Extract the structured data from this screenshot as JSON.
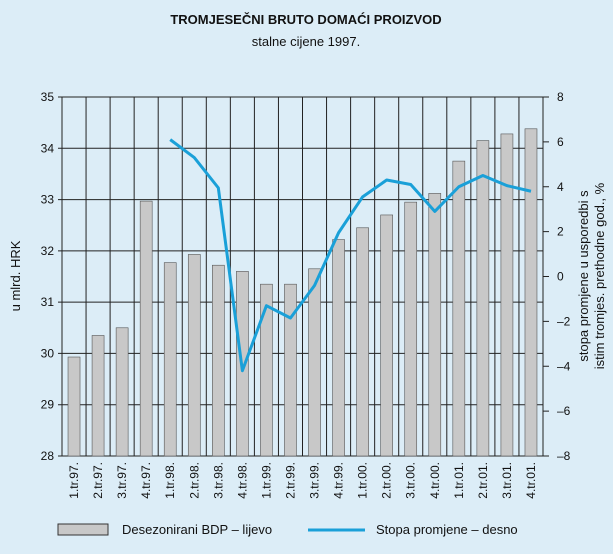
{
  "chart_data": {
    "type": "bar_line",
    "title": "TROMJESEČNI BRUTO DOMAĆI PROIZVOD",
    "subtitle": "stalne cijene 1997.",
    "ylabel": "u mlrd. HRK",
    "y2label": [
      "stopa promjene u usporedbi s",
      "istim tromjes. prethodne god., %"
    ],
    "categories": [
      "1.tr.97.",
      "2.tr.97.",
      "3.tr.97.",
      "4.tr.97.",
      "1.tr.98.",
      "2.tr.98.",
      "3.tr.98.",
      "4.tr.98.",
      "1.tr.99.",
      "2.tr.99.",
      "3.tr.99.",
      "4.tr.99.",
      "1.tr.00.",
      "2.tr.00.",
      "3.tr.00.",
      "4.tr.00.",
      "1.tr.01.",
      "2.tr.01.",
      "3.tr.01.",
      "4.tr.01."
    ],
    "series": [
      {
        "name": "Desezonirani BDP – lijevo",
        "color": "#c8c8c8",
        "values": [
          29.93,
          30.35,
          30.5,
          32.97,
          31.77,
          31.93,
          31.72,
          31.6,
          31.35,
          31.35,
          31.65,
          32.22,
          32.45,
          32.7,
          32.95,
          33.12,
          33.75,
          34.15,
          34.28,
          34.38
        ]
      },
      {
        "name": "Stopa promjene – desno",
        "color": "#1aa0d8",
        "axis": "y2",
        "values": [
          null,
          null,
          null,
          null,
          6.1,
          5.3,
          3.95,
          -4.2,
          -1.3,
          -1.85,
          -0.4,
          1.95,
          3.55,
          4.3,
          4.1,
          2.9,
          4.0,
          4.5,
          4.05,
          3.8
        ]
      }
    ],
    "ylim": [
      28,
      35
    ],
    "yticks": [
      28,
      29,
      30,
      31,
      32,
      33,
      34,
      35
    ],
    "y2lim": [
      -8,
      8
    ],
    "y2ticks": [
      {
        "value": -8,
        "label": "–8"
      },
      {
        "value": -6,
        "label": "–6"
      },
      {
        "value": -4,
        "label": "–4"
      },
      {
        "value": -2,
        "label": "–2"
      },
      0,
      2,
      4,
      6,
      8
    ],
    "grid": true
  }
}
